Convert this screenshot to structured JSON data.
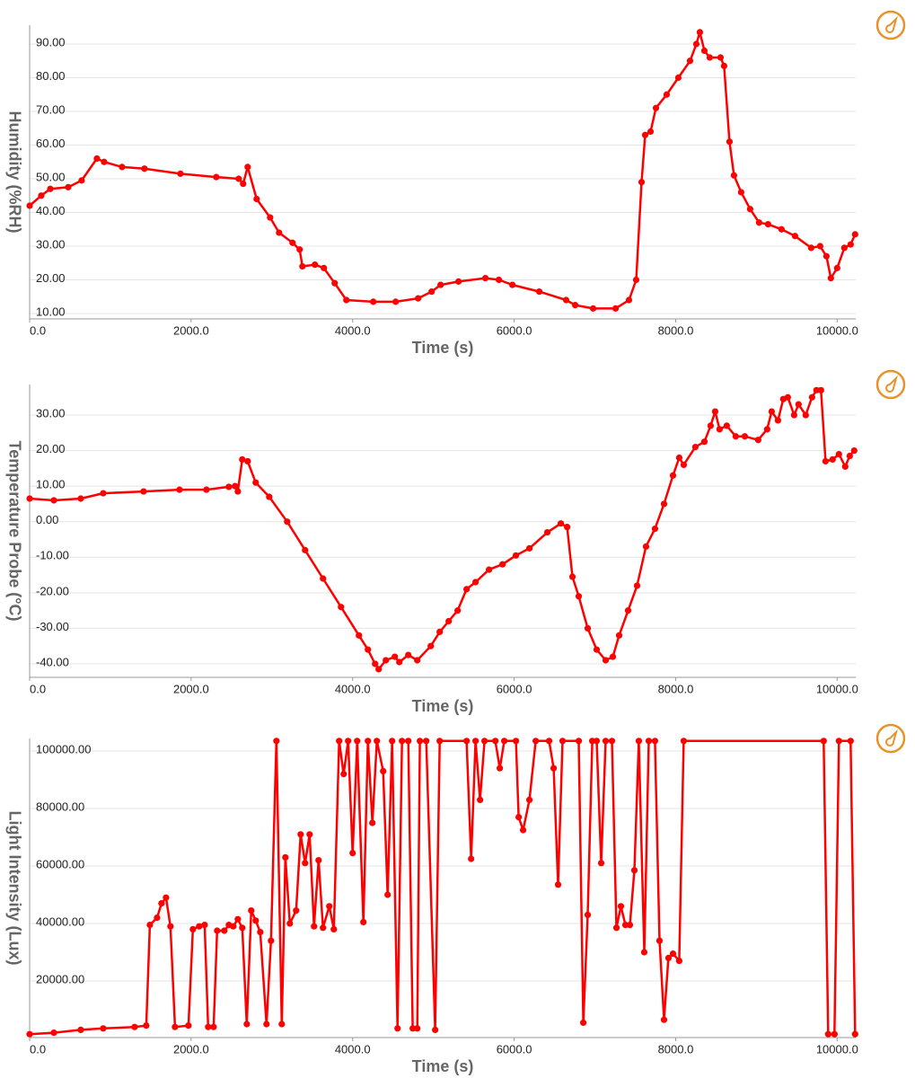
{
  "chart_data": [
    {
      "type": "line",
      "x_label": "Time (s)",
      "y_label": "Humidity (%RH)",
      "color": "#ff0000",
      "xlim": [
        0,
        10230
      ],
      "ylim": [
        8.4,
        95.6
      ],
      "xticks": [
        {
          "value": 0,
          "label": "0.0"
        },
        {
          "value": 2000,
          "label": "2000.0"
        },
        {
          "value": 4000,
          "label": "4000.0"
        },
        {
          "value": 6000,
          "label": "6000.0"
        },
        {
          "value": 8000,
          "label": "8000.0"
        },
        {
          "value": 10000,
          "label": "10000.0"
        }
      ],
      "yticks": [
        {
          "value": 10,
          "label": "10.00"
        },
        {
          "value": 20,
          "label": "20.00"
        },
        {
          "value": 30,
          "label": "30.00"
        },
        {
          "value": 40,
          "label": "40.00"
        },
        {
          "value": 50,
          "label": "50.00"
        },
        {
          "value": 60,
          "label": "60.00"
        },
        {
          "value": 70,
          "label": "70.00"
        },
        {
          "value": 80,
          "label": "80.00"
        },
        {
          "value": 90,
          "label": "90.00"
        }
      ],
      "x": [
        0,
        144,
        256,
        478,
        644,
        833,
        922,
        1144,
        1422,
        1867,
        2311,
        2589,
        2644,
        2700,
        2811,
        2978,
        3089,
        3256,
        3344,
        3378,
        3533,
        3644,
        3778,
        3922,
        4256,
        4533,
        4811,
        4978,
        5089,
        5311,
        5644,
        5811,
        5978,
        6311,
        6644,
        6756,
        6978,
        7256,
        7422,
        7511,
        7578,
        7622,
        7689,
        7756,
        7889,
        8033,
        8178,
        8256,
        8300,
        8356,
        8422,
        8556,
        8600,
        8667,
        8722,
        8811,
        8922,
        9033,
        9144,
        9311,
        9478,
        9678,
        9789,
        9867,
        9922,
        10000,
        10089,
        10167,
        10222
      ],
      "values": [
        42,
        45,
        47,
        47.5,
        49.5,
        56,
        55,
        53.5,
        53,
        51.5,
        50.5,
        50,
        48.5,
        53.5,
        44,
        38.5,
        34,
        31,
        29,
        24,
        24.5,
        23.5,
        19,
        14,
        13.5,
        13.5,
        14.5,
        16.5,
        18.5,
        19.5,
        20.5,
        20,
        18.5,
        16.5,
        14,
        12.5,
        11.5,
        11.5,
        14,
        20,
        49,
        63,
        64,
        71,
        75,
        80,
        85,
        90,
        93.5,
        88,
        86,
        86,
        83.5,
        61,
        51,
        46,
        41,
        37,
        36.5,
        35,
        33,
        29.5,
        30,
        27,
        20.5,
        23.5,
        29.5,
        30.5,
        33.5
      ]
    },
    {
      "type": "line",
      "x_label": "Time (s)",
      "y_label": "Temperature Probe (°C)",
      "color": "#ff0000",
      "xlim": [
        0,
        10230
      ],
      "ylim": [
        -43.8,
        38.6
      ],
      "xticks": [
        {
          "value": 0,
          "label": "0.0"
        },
        {
          "value": 2000,
          "label": "2000.0"
        },
        {
          "value": 4000,
          "label": "4000.0"
        },
        {
          "value": 6000,
          "label": "6000.0"
        },
        {
          "value": 8000,
          "label": "8000.0"
        },
        {
          "value": 10000,
          "label": "10000.0"
        }
      ],
      "yticks": [
        {
          "value": -40,
          "label": "-40.00"
        },
        {
          "value": -30,
          "label": "-30.00"
        },
        {
          "value": -20,
          "label": "-20.00"
        },
        {
          "value": -10,
          "label": "-10.00"
        },
        {
          "value": 0,
          "label": "0.00"
        },
        {
          "value": 10,
          "label": "10.00"
        },
        {
          "value": 20,
          "label": "20.00"
        },
        {
          "value": 30,
          "label": "30.00"
        }
      ],
      "x": [
        0,
        300,
        633,
        911,
        1411,
        1856,
        2189,
        2467,
        2544,
        2578,
        2633,
        2700,
        2800,
        2967,
        3189,
        3411,
        3633,
        3856,
        4078,
        4189,
        4278,
        4322,
        4411,
        4522,
        4578,
        4689,
        4800,
        4967,
        5078,
        5189,
        5300,
        5411,
        5522,
        5689,
        5856,
        6022,
        6189,
        6411,
        6578,
        6656,
        6722,
        6800,
        6911,
        7022,
        7133,
        7222,
        7300,
        7411,
        7522,
        7633,
        7744,
        7856,
        7967,
        8044,
        8100,
        8244,
        8356,
        8433,
        8489,
        8544,
        8633,
        8744,
        8856,
        9022,
        9133,
        9189,
        9267,
        9333,
        9389,
        9467,
        9522,
        9611,
        9689,
        9744,
        9800,
        9856,
        9944,
        10022,
        10100,
        10156,
        10211
      ],
      "values": [
        6.5,
        6,
        6.5,
        8,
        8.5,
        9,
        9,
        9.8,
        10,
        8.5,
        17.5,
        17,
        11,
        7,
        0,
        -8,
        -16,
        -24,
        -32,
        -36,
        -40,
        -41.5,
        -39,
        -38,
        -39.5,
        -37.5,
        -39,
        -35,
        -31,
        -28,
        -25,
        -19,
        -17,
        -13.5,
        -12,
        -9.5,
        -7.5,
        -3,
        -0.5,
        -1.5,
        -15.5,
        -21,
        -30,
        -36,
        -39,
        -38,
        -32,
        -25,
        -18,
        -7,
        -2,
        5,
        13,
        18,
        16,
        21,
        22.5,
        27,
        31,
        26,
        27,
        24,
        24,
        23,
        26,
        31,
        28.5,
        34.5,
        35,
        30,
        33,
        30,
        35,
        37,
        37,
        17,
        17.5,
        19,
        15.5,
        18.5,
        20
      ]
    },
    {
      "type": "line",
      "x_label": "Time (s)",
      "y_label": "Light Intensity (Lux)",
      "color": "#ff0000",
      "xlim": [
        0,
        10230
      ],
      "ylim": [
        312,
        104375
      ],
      "xticks": [
        {
          "value": 0,
          "label": "0.0"
        },
        {
          "value": 2000,
          "label": "2000.0"
        },
        {
          "value": 4000,
          "label": "4000.0"
        },
        {
          "value": 6000,
          "label": "6000.0"
        },
        {
          "value": 8000,
          "label": "8000.0"
        },
        {
          "value": 10000,
          "label": "10000.0"
        }
      ],
      "yticks": [
        {
          "value": 20000,
          "label": "20000.00"
        },
        {
          "value": 40000,
          "label": "40000.00"
        },
        {
          "value": 60000,
          "label": "60000.00"
        },
        {
          "value": 80000,
          "label": "80000.00"
        },
        {
          "value": 100000,
          "label": "100000.00"
        }
      ],
      "x": [
        0,
        300,
        633,
        911,
        1300,
        1444,
        1489,
        1578,
        1633,
        1689,
        1744,
        1800,
        1967,
        2022,
        2100,
        2167,
        2211,
        2278,
        2322,
        2411,
        2467,
        2522,
        2578,
        2633,
        2689,
        2744,
        2800,
        2856,
        2933,
        2989,
        3056,
        3122,
        3167,
        3222,
        3300,
        3356,
        3411,
        3467,
        3522,
        3578,
        3633,
        3711,
        3767,
        3833,
        3889,
        3944,
        4000,
        4056,
        4133,
        4189,
        4244,
        4300,
        4378,
        4433,
        4489,
        4556,
        4611,
        4689,
        4744,
        4800,
        4833,
        4911,
        5022,
        5078,
        5411,
        5467,
        5522,
        5578,
        5633,
        5767,
        5822,
        5878,
        6022,
        6056,
        6111,
        6189,
        6267,
        6433,
        6489,
        6544,
        6600,
        6800,
        6856,
        6911,
        6967,
        7022,
        7078,
        7133,
        7211,
        7267,
        7322,
        7378,
        7433,
        7489,
        7544,
        7611,
        7667,
        7744,
        7800,
        7856,
        7911,
        7967,
        8044,
        8100,
        9833,
        9889,
        9967,
        10022,
        10167,
        10222
      ],
      "values": [
        1500,
        2000,
        3000,
        3500,
        4000,
        4500,
        39500,
        42000,
        47000,
        49000,
        39000,
        4000,
        4500,
        38000,
        39000,
        39500,
        4000,
        4000,
        37500,
        37500,
        39500,
        39000,
        41500,
        38500,
        5000,
        44500,
        41000,
        37000,
        5000,
        34000,
        103500,
        5000,
        63000,
        40000,
        44500,
        71000,
        61000,
        71000,
        39000,
        62000,
        38500,
        46000,
        38000,
        103500,
        92000,
        103500,
        64500,
        103500,
        40500,
        103500,
        75000,
        103500,
        93000,
        50000,
        103500,
        3500,
        103500,
        103500,
        3500,
        3500,
        103500,
        103500,
        3000,
        103500,
        103500,
        62500,
        103500,
        83000,
        103500,
        103500,
        94000,
        103500,
        103500,
        77000,
        72500,
        83000,
        103500,
        103500,
        94000,
        53500,
        103500,
        103500,
        5500,
        43000,
        103500,
        103500,
        61000,
        103500,
        103500,
        38500,
        46000,
        39500,
        39500,
        58500,
        103500,
        30000,
        103500,
        103500,
        34000,
        6500,
        28000,
        29500,
        27000,
        103500,
        103500,
        1500,
        1500,
        103500,
        103500,
        1500
      ]
    }
  ]
}
